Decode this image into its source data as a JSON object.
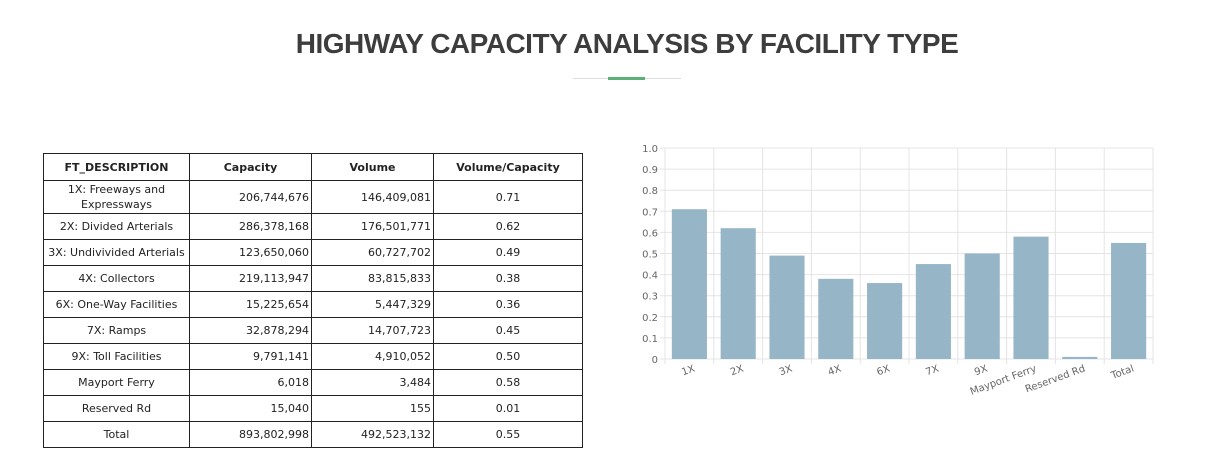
{
  "page": {
    "title": "HIGHWAY CAPACITY ANALYSIS BY FACILITY TYPE"
  },
  "colors": {
    "bar": "#96b6c8",
    "accent": "#5db075",
    "grid": "#e4e4e4"
  },
  "table": {
    "headers": [
      "FT_DESCRIPTION",
      "Capacity",
      "Volume",
      "Volume/Capacity"
    ],
    "rows": [
      {
        "desc": "1X: Freeways and Expressways",
        "capacity": "206,744,676",
        "volume": "146,409,081",
        "vc": "0.71"
      },
      {
        "desc": "2X: Divided Arterials",
        "capacity": "286,378,168",
        "volume": "176,501,771",
        "vc": "0.62"
      },
      {
        "desc": "3X: Undivivided Arterials",
        "capacity": "123,650,060",
        "volume": "60,727,702",
        "vc": "0.49"
      },
      {
        "desc": "4X: Collectors",
        "capacity": "219,113,947",
        "volume": "83,815,833",
        "vc": "0.38"
      },
      {
        "desc": "6X: One-Way Facilities",
        "capacity": "15,225,654",
        "volume": "5,447,329",
        "vc": "0.36"
      },
      {
        "desc": "7X: Ramps",
        "capacity": "32,878,294",
        "volume": "14,707,723",
        "vc": "0.45"
      },
      {
        "desc": "9X: Toll Facilities",
        "capacity": "9,791,141",
        "volume": "4,910,052",
        "vc": "0.50"
      },
      {
        "desc": "Mayport Ferry",
        "capacity": "6,018",
        "volume": "3,484",
        "vc": "0.58"
      },
      {
        "desc": "Reserved Rd",
        "capacity": "15,040",
        "volume": "155",
        "vc": "0.01"
      },
      {
        "desc": "Total",
        "capacity": "893,802,998",
        "volume": "492,523,132",
        "vc": "0.55"
      }
    ]
  },
  "chart_data": {
    "type": "bar",
    "categories": [
      "1X",
      "2X",
      "3X",
      "4X",
      "6X",
      "7X",
      "9X",
      "Mayport Ferry",
      "Reserved Rd",
      "Total"
    ],
    "values": [
      0.71,
      0.62,
      0.49,
      0.38,
      0.36,
      0.45,
      0.5,
      0.58,
      0.01,
      0.55
    ],
    "yticks": [
      "0",
      "0.1",
      "0.2",
      "0.3",
      "0.4",
      "0.5",
      "0.6",
      "0.7",
      "0.8",
      "0.9",
      "1.0"
    ],
    "ylim": [
      0,
      1.0
    ],
    "grid": true,
    "title": "",
    "xlabel": "",
    "ylabel": ""
  }
}
